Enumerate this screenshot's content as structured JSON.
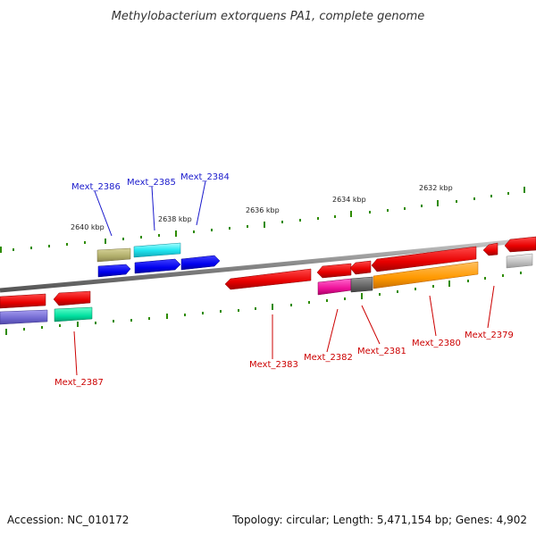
{
  "title": "Methylobacterium extorquens PA1, complete genome",
  "footer": {
    "accession": "Accession: NC_010172",
    "topology": "Topology: circular; Length: 5,471,154 bp; Genes: 4,902"
  },
  "colors": {
    "backbone": "#888888",
    "tick": "#2e8b00",
    "label_forward": "#1a1acc",
    "label_reverse": "#cc0000"
  },
  "scale_labels": [
    "2640 kbp",
    "2638 kbp",
    "2636 kbp",
    "2634 kbp",
    "2632 kbp"
  ],
  "genes": [
    {
      "id": "Mext_2386",
      "label": "Mext_2386",
      "strand": "forward"
    },
    {
      "id": "Mext_2385",
      "label": "Mext_2385",
      "strand": "forward"
    },
    {
      "id": "Mext_2384",
      "label": "Mext_2384",
      "strand": "forward"
    },
    {
      "id": "Mext_2387",
      "label": "Mext_2387",
      "strand": "reverse"
    },
    {
      "id": "Mext_2383",
      "label": "Mext_2383",
      "strand": "reverse"
    },
    {
      "id": "Mext_2382",
      "label": "Mext_2382",
      "strand": "reverse"
    },
    {
      "id": "Mext_2381",
      "label": "Mext_2381",
      "strand": "reverse"
    },
    {
      "id": "Mext_2380",
      "label": "Mext_2380",
      "strand": "reverse"
    },
    {
      "id": "Mext_2379",
      "label": "Mext_2379",
      "strand": "reverse"
    }
  ]
}
